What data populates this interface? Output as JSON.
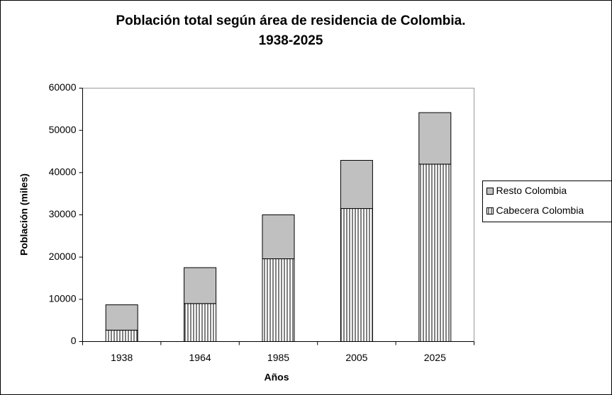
{
  "chart_data": {
    "type": "bar",
    "stacked": true,
    "title": "Población total según área de residencia de Colombia.",
    "subtitle": "1938-2025",
    "x_label": "Años",
    "y_label": "Población (miles)",
    "categories": [
      "1938",
      "1964",
      "1985",
      "2005",
      "2025"
    ],
    "series": [
      {
        "name": "Cabecera Colombia",
        "color": "#ffffff",
        "pattern": "vertical-stripes",
        "values": [
          2700,
          9000,
          19600,
          31500,
          42000
        ]
      },
      {
        "name": "Resto Colombia",
        "color": "#c0c0c0",
        "values": [
          6000,
          8500,
          10400,
          11400,
          12200
        ]
      }
    ],
    "ylim": [
      0,
      60000
    ],
    "yticks": [
      0,
      10000,
      20000,
      30000,
      40000,
      50000,
      60000
    ],
    "grid": false,
    "legend": "right"
  }
}
